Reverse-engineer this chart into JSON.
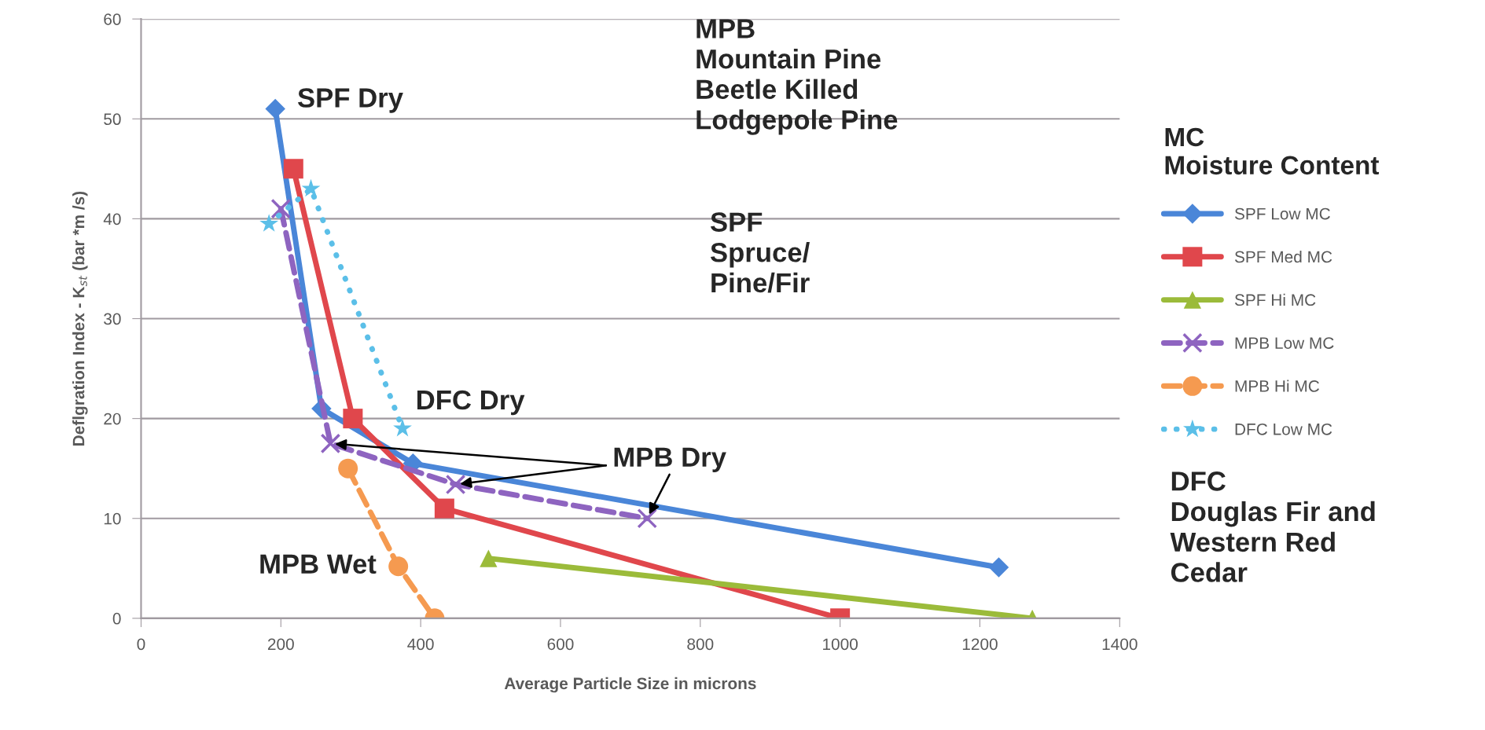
{
  "chart_data": {
    "type": "line",
    "xlabel": "Average Particle Size in microns",
    "ylabel": "Deflgration Index - K$_{st}$ (bar *m /s)",
    "legend_title": "MC\nMoisture Content",
    "xlim": [
      0,
      1400
    ],
    "xticks": [
      0,
      200,
      400,
      600,
      800,
      1000,
      1200,
      1400
    ],
    "ylim": [
      0,
      60
    ],
    "yticks": [
      0,
      10,
      20,
      30,
      40,
      50,
      60
    ],
    "grid": "y",
    "legend": "right",
    "series": [
      {
        "name": "SPF Low MC",
        "color": "#4a86d8",
        "marker": "diamond",
        "line_style": "solid",
        "x": [
          192,
          258,
          389,
          1227
        ],
        "values": [
          51,
          21,
          15.5,
          5.1
        ]
      },
      {
        "name": "SPF Med MC",
        "color": "#e0474c",
        "marker": "square",
        "line_style": "solid",
        "x": [
          218,
          303,
          434,
          1000
        ],
        "values": [
          45,
          20,
          11,
          0
        ]
      },
      {
        "name": "SPF Hi MC",
        "color": "#9bbb3a",
        "marker": "triangle",
        "line_style": "solid",
        "x": [
          497,
          1275
        ],
        "values": [
          6,
          0
        ]
      },
      {
        "name": "MPB Low MC",
        "color": "#8e64c0",
        "marker": "cross",
        "line_style": "dashed",
        "x": [
          200,
          271,
          450,
          724
        ],
        "values": [
          41,
          17.5,
          13.4,
          10
        ]
      },
      {
        "name": "MPB Hi MC",
        "color": "#f59a50",
        "marker": "circle",
        "line_style": "dashed",
        "x": [
          296,
          368,
          420
        ],
        "values": [
          15,
          5.2,
          0
        ]
      },
      {
        "name": "DFC Low MC",
        "color": "#5bbfe8",
        "marker": "star",
        "line_style": "dotted",
        "x": [
          183,
          243,
          374
        ],
        "values": [
          39.5,
          43,
          19
        ]
      }
    ],
    "annotations": [
      {
        "text": "SPF Dry",
        "x": 192,
        "y": 51
      },
      {
        "text": "DFC Dry",
        "x": 374,
        "y": 19
      },
      {
        "text": "MPB Wet",
        "x": 368,
        "y": 5.2
      },
      {
        "text": "MPB Dry",
        "x": 271,
        "y": 17.5
      },
      "MPB\nMountain Pine\nBeetle Killed\nLodgepole Pine",
      "SPF\nSpruce/\nPine/Fir",
      "DFC\nDouglas Fir and\nWestern Red\nCedar"
    ]
  }
}
